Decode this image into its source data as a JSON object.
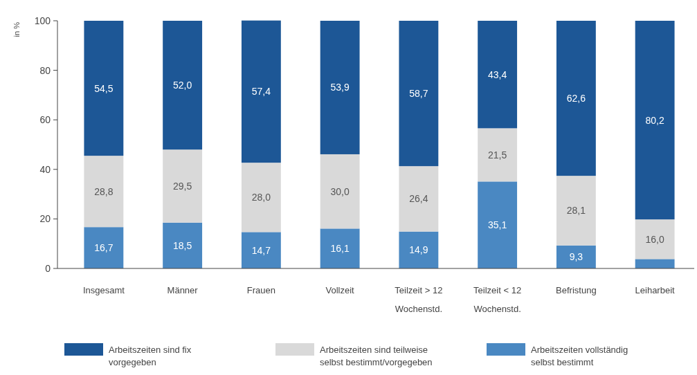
{
  "chart_data": {
    "type": "bar",
    "stacked": true,
    "ylabel": "in %",
    "ylim": [
      0,
      100
    ],
    "yticks": [
      0,
      20,
      40,
      60,
      80,
      100
    ],
    "grid": false,
    "legend": "bottom",
    "categories": [
      "Insgesamt",
      "Männer",
      "Frauen",
      "Vollzeit",
      "Teilzeit > 12 Wochenstd.",
      "Teilzeit < 12 Wochenstd.",
      "Befristung",
      "Leiharbeit"
    ],
    "series": [
      {
        "name": "Arbeitszeiten vollständig selbst bestimmt",
        "color": "#4a88c2",
        "values": [
          16.7,
          18.5,
          14.7,
          16.1,
          14.9,
          35.1,
          9.3,
          3.8
        ],
        "value_labels": [
          "16,7",
          "18,5",
          "14,7",
          "16,1",
          "14,9",
          "35,1",
          "9,3",
          null
        ]
      },
      {
        "name": "Arbeitszeiten sind teilweise selbst bestimmt/vorgegeben",
        "color": "#d9d9d9",
        "values": [
          28.8,
          29.5,
          28.0,
          30.0,
          26.4,
          21.5,
          28.1,
          16.0
        ],
        "value_labels": [
          "28,8",
          "29,5",
          "28,0",
          "30,0",
          "26,4",
          "21,5",
          "28,1",
          "16,0"
        ]
      },
      {
        "name": "Arbeitszeiten sind fix vorgegeben",
        "color": "#1d5796",
        "values": [
          54.5,
          52.0,
          57.4,
          53.9,
          58.7,
          43.4,
          62.6,
          80.2
        ],
        "value_labels": [
          "54,5",
          "52,0",
          "57,4",
          "53,9",
          "58,7",
          "43,4",
          "62,6",
          "80,2"
        ]
      }
    ]
  }
}
